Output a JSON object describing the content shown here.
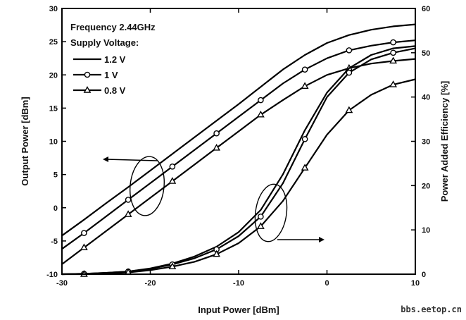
{
  "chart_data": {
    "type": "line",
    "xlabel": "Input Power [dBm]",
    "ylabel_left": "Output Power [dBm]",
    "ylabel_right": "Power Added Efficiency [%]",
    "xlim": [
      -30,
      10
    ],
    "ylim_left": [
      -10,
      30
    ],
    "ylim_right": [
      0,
      60
    ],
    "xticks": [
      -30,
      -20,
      -10,
      0,
      10
    ],
    "yticks_left": [
      -10,
      -5,
      0,
      5,
      10,
      15,
      20,
      25,
      30
    ],
    "yticks_right": [
      0,
      10,
      20,
      30,
      40,
      50,
      60
    ],
    "grid": false,
    "legend": {
      "placement": "top-left",
      "title_lines": [
        "Frequency 2.44GHz",
        "Supply Voltage:"
      ],
      "entries": [
        {
          "label": "1.2 V",
          "marker": "none"
        },
        {
          "label": "1 V",
          "marker": "circle"
        },
        {
          "label": "0.8 V",
          "marker": "triangle"
        }
      ]
    },
    "x": [
      -30,
      -27.5,
      -25,
      -22.5,
      -20,
      -17.5,
      -15,
      -12.5,
      -10,
      -7.5,
      -5,
      -2.5,
      0,
      2.5,
      5,
      7.5,
      10
    ],
    "series": [
      {
        "name": "1.2 V",
        "axis": "left",
        "marker": "none",
        "values": [
          -4.2,
          -1.8,
          0.7,
          3.1,
          5.6,
          8.1,
          10.6,
          13.1,
          15.6,
          18.2,
          20.8,
          23.0,
          24.8,
          26.0,
          26.8,
          27.3,
          27.6
        ]
      },
      {
        "name": "1 V",
        "axis": "left",
        "marker": "circle",
        "values": [
          -6.2,
          -3.8,
          -1.3,
          1.2,
          3.7,
          6.2,
          8.7,
          11.2,
          13.7,
          16.2,
          18.7,
          20.8,
          22.5,
          23.7,
          24.4,
          24.9,
          25.2
        ]
      },
      {
        "name": "0.8 V",
        "axis": "left",
        "marker": "triangle",
        "values": [
          -8.5,
          -6.0,
          -3.5,
          -1.0,
          1.5,
          4.0,
          6.5,
          9.0,
          11.5,
          14.0,
          16.2,
          18.3,
          20.0,
          21.0,
          21.7,
          22.1,
          22.4
        ]
      },
      {
        "name": "1.2 V",
        "axis": "right",
        "marker": "none",
        "values": [
          0.0,
          0.1,
          0.3,
          0.6,
          1.3,
          2.4,
          4.0,
          6.2,
          9.5,
          14.5,
          22.5,
          32.5,
          41.0,
          46.5,
          49.5,
          51.0,
          51.5
        ]
      },
      {
        "name": "1 V",
        "axis": "right",
        "marker": "circle",
        "values": [
          0.0,
          0.1,
          0.3,
          0.6,
          1.2,
          2.2,
          3.6,
          5.6,
          8.6,
          13.0,
          20.5,
          30.5,
          40.0,
          45.5,
          48.5,
          50.0,
          51.0
        ]
      },
      {
        "name": "0.8 V",
        "axis": "right",
        "marker": "triangle",
        "values": [
          0.0,
          0.0,
          0.2,
          0.4,
          0.9,
          1.7,
          2.8,
          4.5,
          7.0,
          10.8,
          16.5,
          24.0,
          31.5,
          37.0,
          40.5,
          42.8,
          44.0
        ]
      }
    ]
  },
  "watermark": "bbs.eetop.cn"
}
